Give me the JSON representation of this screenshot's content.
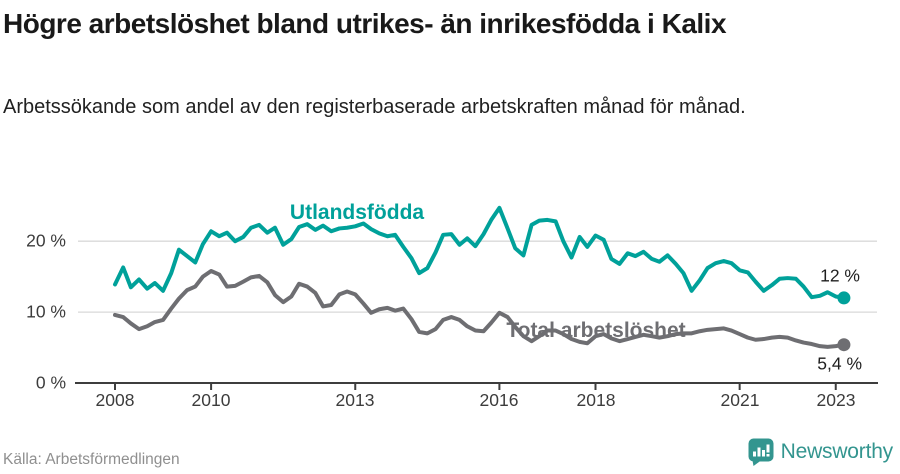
{
  "header": {
    "title": "Högre arbetslöshet bland utrikes- än inrikesfödda i Kalix",
    "subtitle": "Arbetssökande som andel av den registerbaserade arbetskraften månad för månad."
  },
  "chart_data": {
    "type": "line",
    "title": "Högre arbetslöshet bland utrikes- än inrikesfödda i Kalix",
    "subtitle": "Arbetssökande som andel av den registerbaserade arbetskraften månad för månad.",
    "grid": "horizontal-only",
    "legend_position": "inline-labels-on-lines",
    "x_axis": {
      "unit": "year",
      "range": [
        2007.2,
        2023.9
      ],
      "ticks": [
        2008,
        2010,
        2013,
        2016,
        2018,
        2021,
        2023
      ],
      "labels": [
        "2008",
        "2010",
        "2013",
        "2016",
        "2018",
        "2021",
        "2023"
      ]
    },
    "y_axis": {
      "unit": "%",
      "range": [
        0,
        26
      ],
      "ticks": [
        0,
        10,
        20
      ],
      "labels": [
        "0 %",
        "10 %",
        "20 %"
      ]
    },
    "x": [
      2008.0,
      2008.17,
      2008.33,
      2008.5,
      2008.67,
      2008.83,
      2009.0,
      2009.17,
      2009.33,
      2009.5,
      2009.67,
      2009.83,
      2010.0,
      2010.17,
      2010.33,
      2010.5,
      2010.67,
      2010.83,
      2011.0,
      2011.17,
      2011.33,
      2011.5,
      2011.67,
      2011.83,
      2012.0,
      2012.17,
      2012.33,
      2012.5,
      2012.67,
      2012.83,
      2013.0,
      2013.17,
      2013.33,
      2013.5,
      2013.67,
      2013.83,
      2014.0,
      2014.17,
      2014.33,
      2014.5,
      2014.67,
      2014.83,
      2015.0,
      2015.17,
      2015.33,
      2015.5,
      2015.67,
      2015.83,
      2016.0,
      2016.17,
      2016.33,
      2016.5,
      2016.67,
      2016.83,
      2017.0,
      2017.17,
      2017.33,
      2017.5,
      2017.67,
      2017.83,
      2018.0,
      2018.17,
      2018.33,
      2018.5,
      2018.67,
      2018.83,
      2019.0,
      2019.17,
      2019.33,
      2019.5,
      2019.67,
      2019.83,
      2020.0,
      2020.17,
      2020.33,
      2020.5,
      2020.67,
      2020.83,
      2021.0,
      2021.17,
      2021.33,
      2021.5,
      2021.67,
      2021.83,
      2022.0,
      2022.17,
      2022.33,
      2022.5,
      2022.67,
      2022.83,
      2023.0,
      2023.17
    ],
    "series": [
      {
        "name": "Utlandsfödda",
        "color": "#00a19a",
        "end_label": "12 %",
        "end_value": 12.0,
        "values": [
          13.9,
          16.3,
          13.5,
          14.6,
          13.3,
          14.1,
          13.0,
          15.5,
          18.8,
          17.9,
          17.0,
          19.6,
          21.4,
          20.7,
          21.2,
          20.0,
          20.6,
          21.9,
          22.3,
          21.2,
          21.9,
          19.5,
          20.3,
          22.0,
          22.4,
          21.6,
          22.2,
          21.4,
          21.8,
          21.9,
          22.1,
          22.5,
          21.7,
          21.1,
          20.7,
          20.9,
          19.2,
          17.6,
          15.5,
          16.2,
          18.4,
          20.9,
          21.0,
          19.5,
          20.4,
          19.3,
          21.0,
          23.0,
          24.7,
          21.8,
          19.0,
          18.0,
          22.3,
          22.9,
          23.0,
          22.8,
          20.0,
          17.7,
          20.6,
          19.2,
          20.8,
          20.2,
          17.5,
          16.8,
          18.3,
          17.9,
          18.5,
          17.5,
          17.1,
          18.0,
          16.8,
          15.5,
          13.0,
          14.5,
          16.2,
          16.9,
          17.2,
          16.9,
          15.9,
          15.6,
          14.3,
          13.0,
          13.8,
          14.7,
          14.8,
          14.7,
          13.6,
          12.1,
          12.3,
          12.8,
          12.2,
          12.0
        ]
      },
      {
        "name": "Total arbetslöshet",
        "color": "#6e6e72",
        "end_label": "5,4 %",
        "end_value": 5.4,
        "values": [
          9.6,
          9.3,
          8.4,
          7.6,
          8.0,
          8.6,
          8.9,
          10.5,
          11.9,
          13.1,
          13.6,
          15.0,
          15.8,
          15.3,
          13.6,
          13.7,
          14.3,
          14.9,
          15.1,
          14.2,
          12.4,
          11.4,
          12.2,
          14.0,
          13.6,
          12.7,
          10.8,
          11.0,
          12.5,
          12.9,
          12.5,
          11.2,
          9.9,
          10.4,
          10.6,
          10.2,
          10.5,
          9.0,
          7.2,
          7.0,
          7.6,
          8.9,
          9.3,
          8.9,
          8.0,
          7.4,
          7.3,
          8.5,
          9.9,
          9.3,
          7.9,
          6.6,
          5.9,
          6.6,
          7.4,
          7.4,
          6.9,
          6.2,
          5.8,
          5.6,
          6.6,
          6.9,
          6.3,
          5.9,
          6.2,
          6.5,
          6.8,
          6.6,
          6.4,
          6.6,
          6.9,
          7.0,
          7.0,
          7.3,
          7.5,
          7.6,
          7.7,
          7.4,
          6.9,
          6.4,
          6.1,
          6.2,
          6.4,
          6.5,
          6.4,
          6.0,
          5.7,
          5.5,
          5.2,
          5.1,
          5.2,
          5.4
        ]
      }
    ],
    "colors": {
      "accent_teal": "#00a19a",
      "neutral_gray": "#6e6e72",
      "gridline": "#d9d9d9",
      "axis": "#3d3d3d"
    }
  },
  "footer": {
    "source": "Källa: Arbetsförmedlingen",
    "brand": "Newsworthy",
    "brand_color": "#33958f",
    "logo_icon": "bar-chart-speech-bubble-icon"
  }
}
